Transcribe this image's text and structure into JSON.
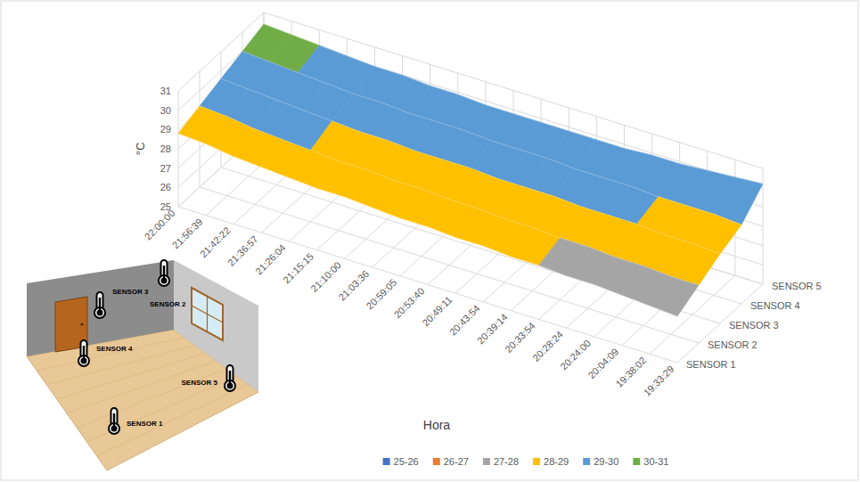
{
  "chart_data": {
    "type": "surface",
    "x_label": "Hora",
    "y_label": "°C",
    "categories": [
      "22:00:00",
      "21:56:39",
      "21:42:22",
      "21:36:57",
      "21:26:04",
      "21:15:15",
      "21:10:00",
      "21:03:36",
      "20:59:05",
      "20:53:40",
      "20:49:11",
      "20:43:54",
      "20:39:14",
      "20:33:54",
      "20:28:24",
      "20:24:00",
      "20:04:09",
      "19:38:02",
      "19:33:29"
    ],
    "series": [
      {
        "name": "SENSOR 1",
        "values": [
          28.8,
          28.7,
          28.5,
          28.4,
          28.3,
          28.2,
          28.2,
          28.1,
          28.0,
          28.0,
          27.9,
          27.9,
          27.8,
          27.8,
          27.7,
          27.7,
          27.6,
          27.5,
          27.4
        ]
      },
      {
        "name": "SENSOR 2",
        "values": [
          29.2,
          29.1,
          28.9,
          28.8,
          28.7,
          28.6,
          28.6,
          28.5,
          28.5,
          28.4,
          28.4,
          28.3,
          28.3,
          28.2,
          28.2,
          28.1,
          28.1,
          28.0,
          28.0
        ]
      },
      {
        "name": "SENSOR 3",
        "values": [
          29.6,
          29.5,
          29.4,
          29.3,
          29.2,
          29.1,
          29.1,
          29.0,
          29.0,
          29.0,
          28.9,
          28.9,
          28.9,
          28.8,
          28.8,
          28.8,
          28.7,
          28.7,
          28.6
        ]
      },
      {
        "name": "SENSOR 4",
        "values": [
          30.0,
          29.9,
          29.8,
          29.7,
          29.6,
          29.6,
          29.5,
          29.5,
          29.5,
          29.4,
          29.4,
          29.4,
          29.3,
          29.3,
          29.3,
          29.2,
          29.2,
          29.2,
          29.1
        ]
      },
      {
        "name": "SENSOR 5",
        "values": [
          30.4,
          30.3,
          30.2,
          30.1,
          30.0,
          30.0,
          29.9,
          29.9,
          29.8,
          29.8,
          29.8,
          29.8,
          29.8,
          29.8,
          29.9,
          29.9,
          30.0,
          30.1,
          30.2
        ]
      }
    ],
    "ylim": [
      25,
      31
    ],
    "yticks": [
      25,
      26,
      27,
      28,
      29,
      30,
      31
    ],
    "grid": true,
    "legend": "bottom",
    "bands": [
      {
        "name": "25-26",
        "min": 25,
        "max": 26,
        "color": "#4472c4"
      },
      {
        "name": "26-27",
        "min": 26,
        "max": 27,
        "color": "#ed7d31"
      },
      {
        "name": "27-28",
        "min": 27,
        "max": 28,
        "color": "#a5a5a5"
      },
      {
        "name": "28-29",
        "min": 28,
        "max": 29,
        "color": "#ffc000"
      },
      {
        "name": "29-30",
        "min": 29,
        "max": 30,
        "color": "#5b9bd5"
      },
      {
        "name": "30-31",
        "min": 30,
        "max": 31,
        "color": "#70ad47"
      }
    ]
  }
}
